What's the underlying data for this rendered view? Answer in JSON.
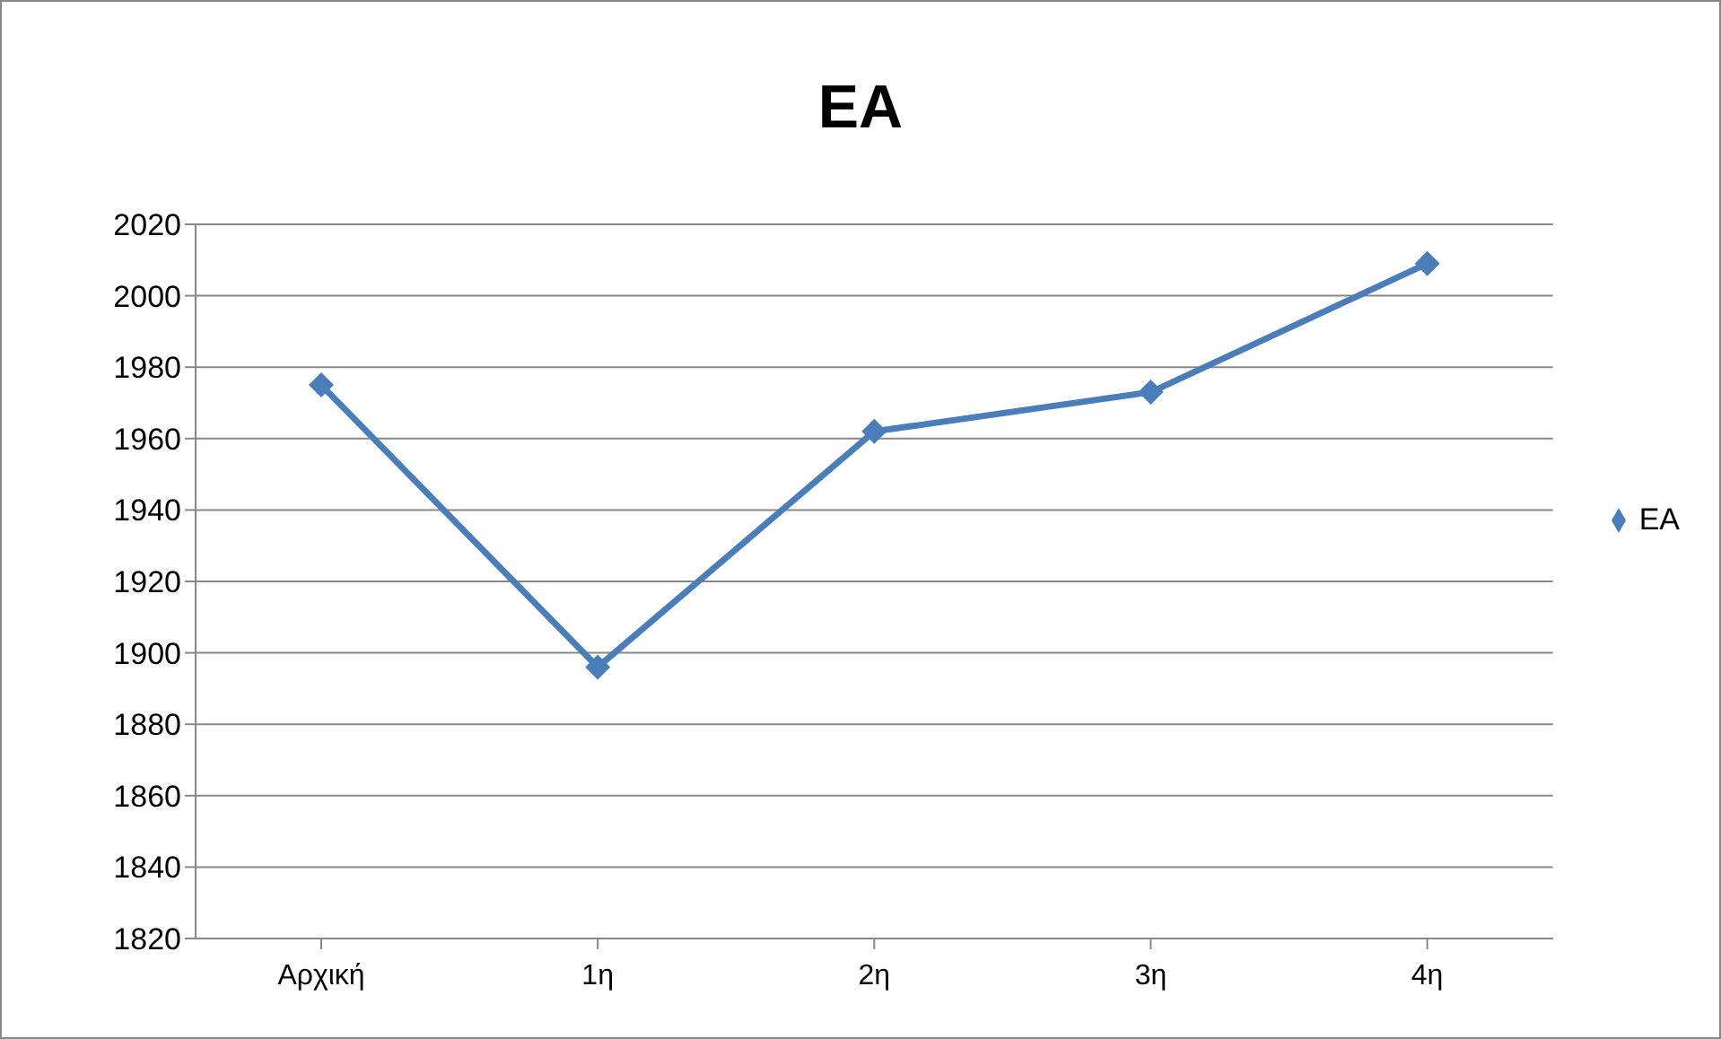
{
  "chart_data": {
    "type": "line",
    "title": "EA",
    "categories": [
      "Αρχική",
      "1η",
      "2η",
      "3η",
      "4η"
    ],
    "series": [
      {
        "name": "EA",
        "color": "#4a7ebb",
        "values": [
          1975,
          1896,
          1962,
          1973,
          2009
        ]
      }
    ],
    "ylim": [
      1820,
      2020
    ],
    "yticks": [
      1820,
      1840,
      1860,
      1880,
      1900,
      1920,
      1940,
      1960,
      1980,
      2000,
      2020
    ],
    "grid": "y",
    "legend": "right",
    "marker": "diamond",
    "line_style": "solid"
  }
}
